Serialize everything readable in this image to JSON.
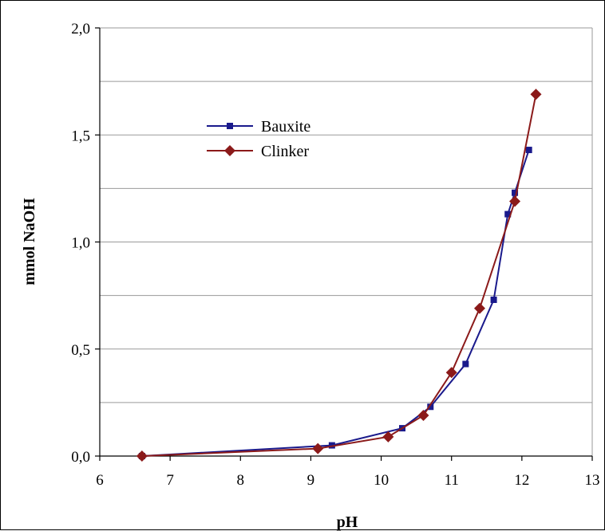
{
  "chart_data": {
    "type": "line",
    "xlabel": "pH",
    "ylabel": "mmol NaOH",
    "xlim": [
      6,
      13
    ],
    "ylim": [
      0,
      2.0
    ],
    "x_ticks": [
      "6",
      "7",
      "8",
      "9",
      "10",
      "11",
      "12",
      "13"
    ],
    "y_ticks": [
      "0,0",
      "0,5",
      "1,0",
      "1,5",
      "2,0"
    ],
    "grid": "horizontal",
    "legend_position": "upper-left",
    "series": [
      {
        "name": "Bauxite",
        "color": "#1a1a8c",
        "marker": "square",
        "x": [
          6.6,
          9.3,
          10.3,
          10.7,
          11.2,
          11.6,
          11.8,
          11.9,
          12.1
        ],
        "y": [
          0.0,
          0.05,
          0.13,
          0.23,
          0.43,
          0.73,
          1.13,
          1.23,
          1.43
        ]
      },
      {
        "name": "Clinker",
        "color": "#8b1a1a",
        "marker": "diamond",
        "x": [
          6.6,
          9.1,
          10.1,
          10.6,
          11.0,
          11.4,
          11.9,
          12.2
        ],
        "y": [
          0.0,
          0.035,
          0.09,
          0.19,
          0.39,
          0.69,
          1.19,
          1.69
        ]
      }
    ]
  }
}
